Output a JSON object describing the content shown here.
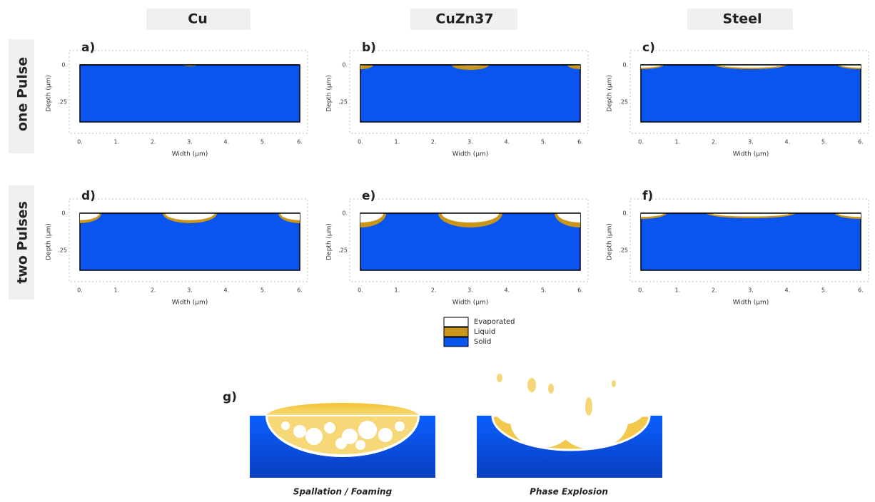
{
  "columns": [
    "Cu",
    "CuZn37",
    "Steel"
  ],
  "rows": [
    "one Pulse",
    "two Pulses"
  ],
  "panels": [
    {
      "label": "a)"
    },
    {
      "label": "b)"
    },
    {
      "label": "c)"
    },
    {
      "label": "d)"
    },
    {
      "label": "e)"
    },
    {
      "label": "f)"
    }
  ],
  "axes": {
    "x_label": "Width (µm)",
    "y_label": "Depth (µm)",
    "x_ticks": [
      "0.",
      "1.",
      "2.",
      "3.",
      "4.",
      "5.",
      "6."
    ],
    "y_ticks": [
      "0.",
      ".25"
    ]
  },
  "legend": [
    "Evaporated",
    "Liquid",
    "Solid"
  ],
  "panel_g": {
    "label": "g)",
    "captions": [
      "Spallation / Foaming",
      "Phase Explosion"
    ]
  }
}
